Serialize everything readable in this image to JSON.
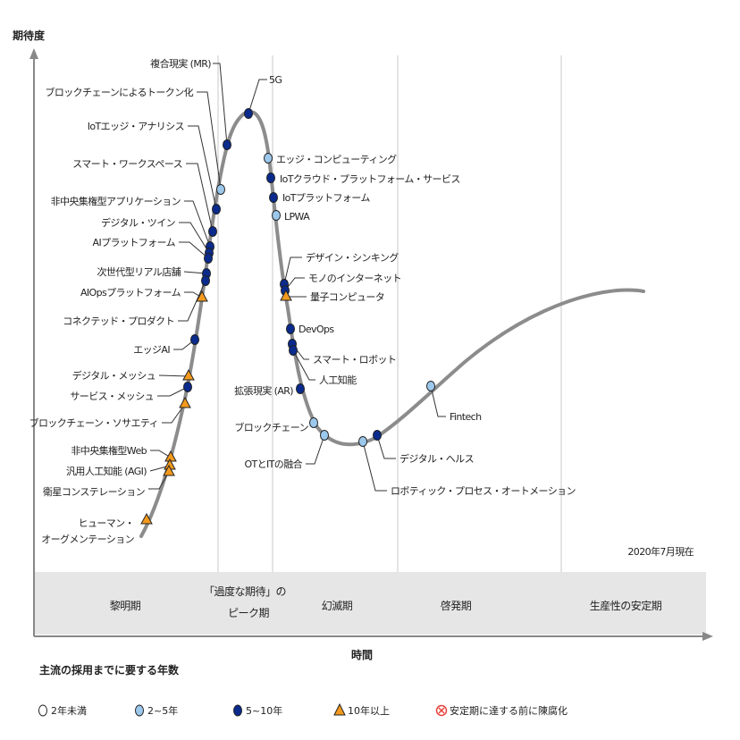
{
  "y_axis_label": "期待度",
  "x_axis_label": "時間",
  "as_of": "2020年7月現在",
  "phases": [
    "黎明期",
    "「過度な期待」の",
    "ピーク期",
    "幻滅期",
    "啓発期",
    "生産性の安定期"
  ],
  "legend": {
    "title": "主流の採用までに要する年数",
    "items": [
      {
        "marker": "white-circle",
        "label": "2年未満",
        "color": "#ffffff"
      },
      {
        "marker": "light-blue-circle",
        "label": "2~5年",
        "color": "#9cc8ec"
      },
      {
        "marker": "dark-blue-circle",
        "label": "5~10年",
        "color": "#0a2a8c"
      },
      {
        "marker": "orange-triangle",
        "label": "10年以上",
        "color": "#f39a1e"
      },
      {
        "marker": "red-x-circle",
        "label": "安定期に達する前に陳腐化",
        "color": "#e8423c"
      }
    ]
  },
  "colors": {
    "curve": "#8c8c8c",
    "band": "#e6e6e6",
    "light": "#9cc8ec",
    "dark": "#0a2a8c",
    "orange": "#f39a1e"
  },
  "technologies": [
    {
      "label": "複合現実 (MR)",
      "type": "dark"
    },
    {
      "label": "5G",
      "type": "dark"
    },
    {
      "label": "ブロックチェーンによるトークン化",
      "type": "light"
    },
    {
      "label": "IoTエッジ・アナリシス",
      "type": "dark"
    },
    {
      "label": "スマート・ワークスペース",
      "type": "dark"
    },
    {
      "label": "非中央集権型アプリケーション",
      "type": "dark"
    },
    {
      "label": "デジタル・ツイン",
      "type": "dark"
    },
    {
      "label": "AIプラットフォーム",
      "type": "dark"
    },
    {
      "label": "次世代型リアル店舗",
      "type": "dark"
    },
    {
      "label": "AIOpsプラットフォーム",
      "type": "orange"
    },
    {
      "label": "コネクテッド・プロダクト",
      "type": "dark"
    },
    {
      "label": "エッジAI",
      "type": "dark"
    },
    {
      "label": "デジタル・メッシュ",
      "type": "orange"
    },
    {
      "label": "サービス・メッシュ",
      "type": "dark"
    },
    {
      "label": "ブロックチェーン・ソサエティ",
      "type": "orange"
    },
    {
      "label": "非中央集権型Web",
      "type": "orange"
    },
    {
      "label": "汎用人工知能 (AGI)",
      "type": "orange"
    },
    {
      "label": "衛星コンステレーション",
      "type": "orange"
    },
    {
      "label": "ヒューマン・",
      "label2": "オーグメンテーション",
      "type": "orange"
    },
    {
      "label": "エッジ・コンピューティング",
      "type": "light"
    },
    {
      "label": "IoTクラウド・プラットフォーム・サービス",
      "type": "dark"
    },
    {
      "label": "IoTプラットフォーム",
      "type": "dark"
    },
    {
      "label": "LPWA",
      "type": "light"
    },
    {
      "label": "デザイン・シンキング",
      "type": "dark"
    },
    {
      "label": "モノのインターネット",
      "type": "dark"
    },
    {
      "label": "量子コンピュータ",
      "type": "orange"
    },
    {
      "label": "DevOps",
      "type": "dark"
    },
    {
      "label": "スマート・ロボット",
      "type": "dark"
    },
    {
      "label": "人工知能",
      "type": "dark"
    },
    {
      "label": "拡張現実 (AR)",
      "type": "dark"
    },
    {
      "label": "ブロックチェーン",
      "type": "light"
    },
    {
      "label": "OTとITの融合",
      "type": "light"
    },
    {
      "label": "ロボティック・プロセス・オートメーション",
      "type": "light"
    },
    {
      "label": "デジタル・ヘルス",
      "type": "dark"
    },
    {
      "label": "Fintech",
      "type": "light"
    }
  ]
}
